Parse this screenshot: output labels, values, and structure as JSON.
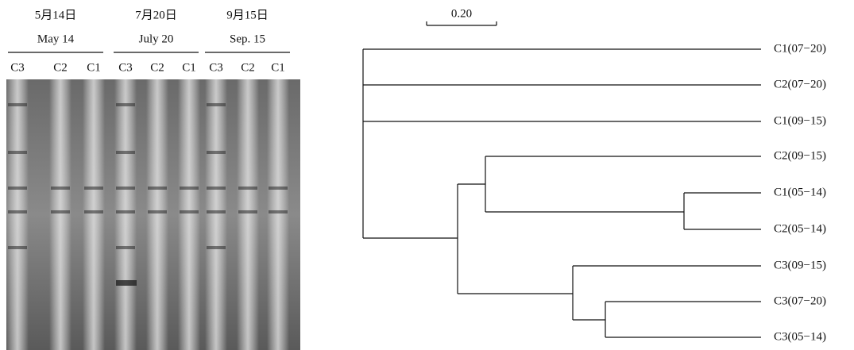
{
  "gel": {
    "groups": [
      {
        "date_cn": "5月14日",
        "date_en": "May 14",
        "lanes": [
          "C3",
          "C2",
          "C1"
        ]
      },
      {
        "date_cn": "7月20日",
        "date_en": "July 20",
        "lanes": [
          "C3",
          "C2",
          "C1"
        ]
      },
      {
        "date_cn": "9月15日",
        "date_en": "Sep. 15",
        "lanes": [
          "C3",
          "C2",
          "C1"
        ]
      }
    ]
  },
  "dendrogram": {
    "scale_label": "0.20",
    "leaves": [
      "C1(07−20)",
      "C2(07−20)",
      "C1(09−15)",
      "C2(09−15)",
      "C1(05−14)",
      "C2(05−14)",
      "C3(09−15)",
      "C3(07−20)",
      "C3(05−14)"
    ]
  }
}
